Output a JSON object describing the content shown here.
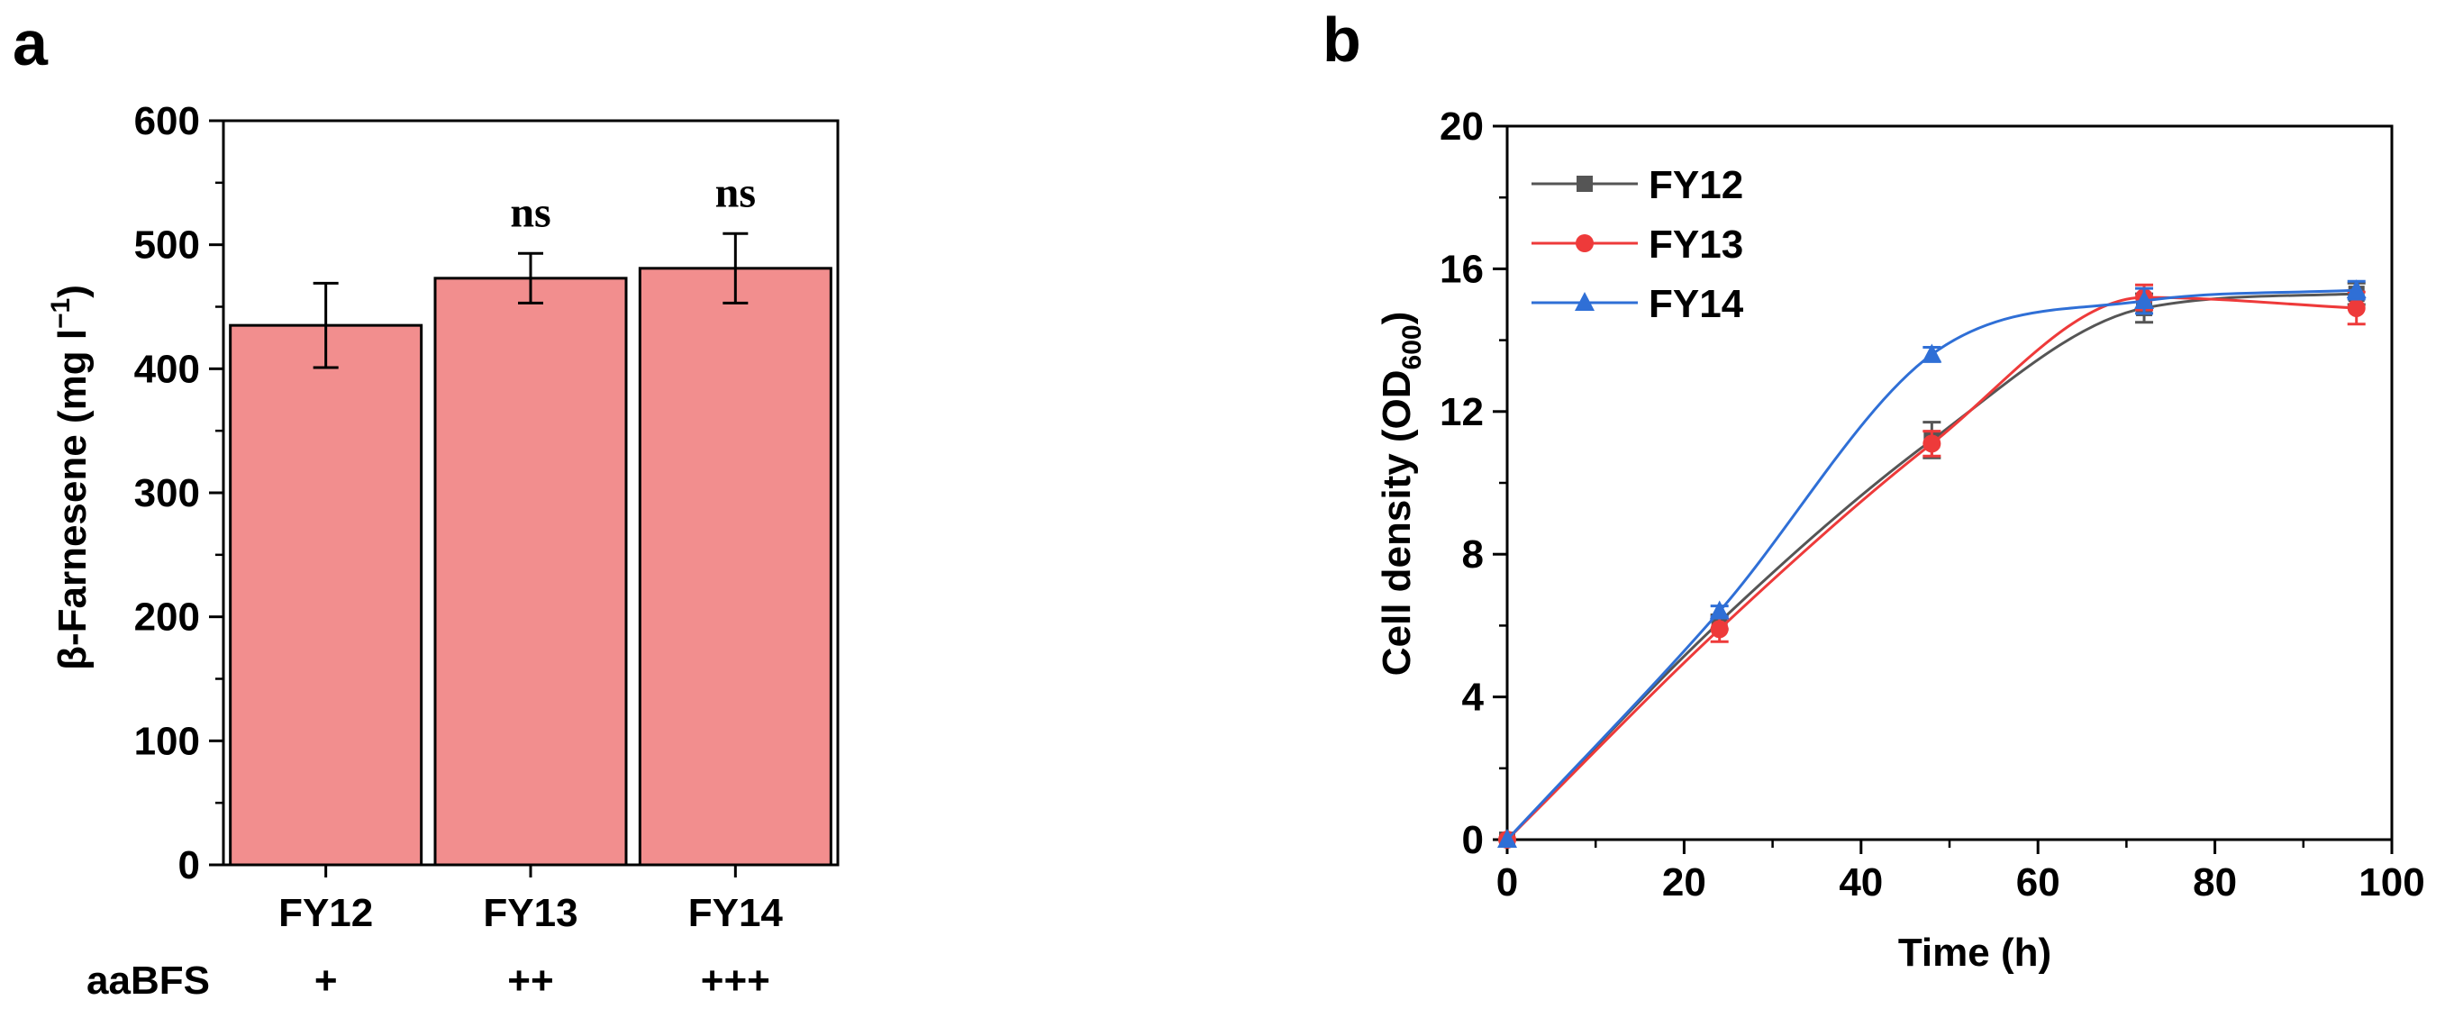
{
  "chart_data": [
    {
      "panel": "a",
      "type": "bar",
      "categories": [
        "FY12",
        "FY13",
        "FY14"
      ],
      "values": [
        435,
        473,
        481
      ],
      "errors": [
        34,
        20,
        28
      ],
      "significance": [
        "",
        "ns",
        "ns"
      ],
      "ylabel": "β-Farnesene (mg l",
      "ylabel_sup": "−1",
      "ylabel_end": ")",
      "ylim": [
        0,
        600
      ],
      "yticks": [
        0,
        100,
        200,
        300,
        400,
        500,
        600
      ],
      "row_label": "aaBFS",
      "row_values": [
        "+",
        "++",
        "+++"
      ],
      "bar_color": "#f28e8e"
    },
    {
      "panel": "b",
      "type": "line",
      "x": [
        0,
        24,
        48,
        72,
        96
      ],
      "series": [
        {
          "name": "FY12",
          "color": "#555555",
          "marker": "square",
          "values": [
            0,
            6.1,
            11.2,
            14.9,
            15.3
          ],
          "errors": [
            0,
            0.2,
            0.5,
            0.4,
            0.3
          ]
        },
        {
          "name": "FY13",
          "color": "#ee3a3a",
          "marker": "circle",
          "values": [
            0,
            5.9,
            11.1,
            15.2,
            14.9
          ],
          "errors": [
            0,
            0.35,
            0.35,
            0.35,
            0.45
          ]
        },
        {
          "name": "FY14",
          "color": "#2f6fd6",
          "marker": "triangle",
          "values": [
            0,
            6.4,
            13.6,
            15.1,
            15.4
          ],
          "errors": [
            0,
            0.15,
            0.2,
            0.35,
            0.25
          ]
        }
      ],
      "xlabel": "Time (h)",
      "ylabel": "Cell density (OD",
      "ylabel_sub": "600",
      "ylabel_end": ")",
      "xlim": [
        0,
        100
      ],
      "ylim": [
        0,
        20
      ],
      "xticks": [
        0,
        20,
        40,
        60,
        80,
        100
      ],
      "yticks": [
        0,
        4,
        8,
        12,
        16,
        20
      ],
      "legend": "top-left"
    }
  ]
}
